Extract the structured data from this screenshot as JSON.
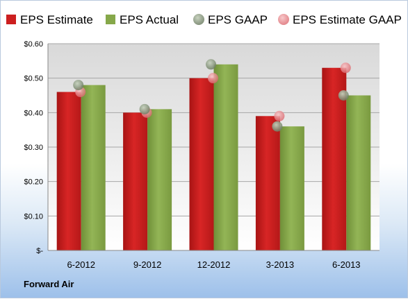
{
  "company": "Forward Air",
  "colors": {
    "eps_estimate": "#cc1f1f",
    "eps_actual": "#86a84a",
    "eps_gaap": "#8a9a80",
    "eps_estimate_gaap": "#e6858a",
    "plot_bg_top": "#d9d9d9",
    "plot_bg_bottom": "#ffffff"
  },
  "chart_data": {
    "type": "bar",
    "categories": [
      "6-2012",
      "9-2012",
      "12-2012",
      "3-2013",
      "6-2013"
    ],
    "series": [
      {
        "name": "EPS Estimate",
        "kind": "bar",
        "values": [
          0.46,
          0.4,
          0.5,
          0.39,
          0.53
        ]
      },
      {
        "name": "EPS Actual",
        "kind": "bar",
        "values": [
          0.48,
          0.41,
          0.54,
          0.36,
          0.45
        ]
      },
      {
        "name": "EPS GAAP",
        "kind": "marker",
        "values": [
          0.48,
          0.41,
          0.54,
          0.36,
          0.45
        ]
      },
      {
        "name": "EPS Estimate GAAP",
        "kind": "marker",
        "values": [
          0.46,
          0.4,
          0.5,
          0.39,
          0.53
        ]
      }
    ],
    "yticks": [
      "$-",
      "$0.10",
      "$0.20",
      "$0.30",
      "$0.40",
      "$0.50",
      "$0.60"
    ],
    "ylim": [
      0,
      0.6
    ],
    "grid": true,
    "legend_position": "top"
  }
}
